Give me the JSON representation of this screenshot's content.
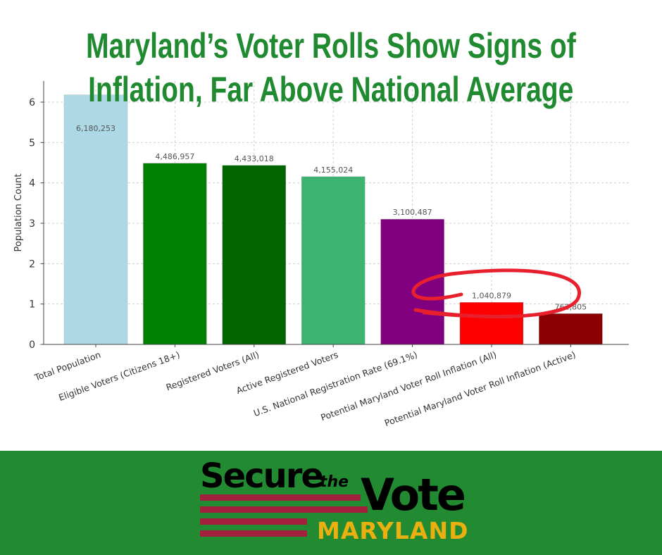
{
  "title_lines": [
    "Maryland’s Voter Rolls Show Signs of",
    "Inflation, Far Above National Average"
  ],
  "chart_data": {
    "type": "bar",
    "title": "Maryland’s Voter Rolls Show Signs of Inflation, Far Above National Average",
    "ylabel": "Population Count",
    "xlabel": "",
    "ylim": [
      0,
      6.5
    ],
    "y_unit_scale": 1000000,
    "yticks": [
      0,
      1,
      2,
      3,
      4,
      5,
      6
    ],
    "grid": true,
    "categories": [
      "Total Population",
      "Eligible Voters (Citizens 18+)",
      "Registered Voters (All)",
      "Active Registered Voters",
      "U.S. National Registration Rate (69.1%)",
      "Potential Maryland Voter Roll Inflation (All)",
      "Potential Maryland Voter Roll Inflation (Active)"
    ],
    "values": [
      6180253,
      4486957,
      4433018,
      4155024,
      3100487,
      1040879,
      762805
    ],
    "labels": [
      "6,180,253",
      "4,486,957",
      "4,433,018",
      "4,155,024",
      "3,100,487",
      "1,040,879",
      "762,805"
    ],
    "colors": [
      "#add8e6",
      "#008000",
      "#006400",
      "#3cb371",
      "#800080",
      "#ff0000",
      "#8b0000"
    ],
    "annotation": "red hand-drawn circle around the two voter roll inflation bars"
  },
  "logo": {
    "secure": "Secure",
    "the": "the",
    "vote": "Vote",
    "state": "MARYLAND"
  },
  "colors": {
    "title": "#1f8a2f",
    "band": "#228b32",
    "stripe": "#a21f3e",
    "state": "#eab010",
    "circle": "#e8202e"
  }
}
